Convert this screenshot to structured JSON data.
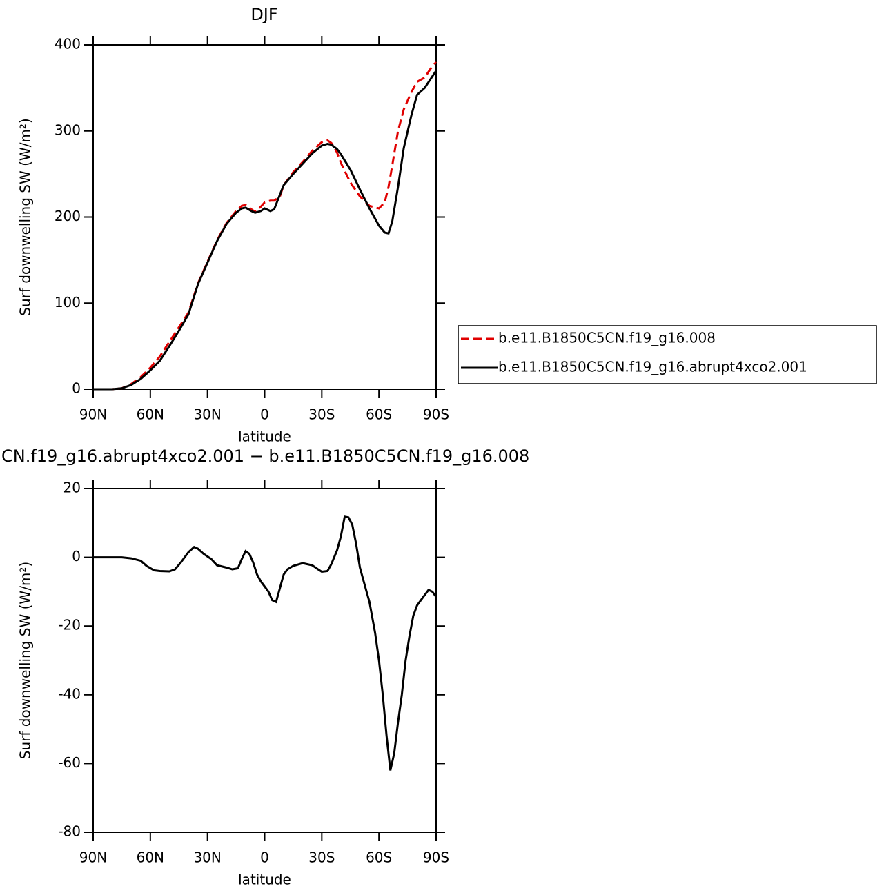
{
  "chart_data": [
    {
      "type": "line",
      "title": "DJF",
      "xlabel": "latitude",
      "ylabel": "Surf downwelling SW (W/m²)",
      "xlim": [
        90,
        -90
      ],
      "xticks": [
        {
          "value": 90,
          "label": "90N"
        },
        {
          "value": 60,
          "label": "60N"
        },
        {
          "value": 30,
          "label": "30N"
        },
        0,
        {
          "value": -30,
          "label": "30S"
        },
        {
          "value": -60,
          "label": "60S"
        },
        {
          "value": -90,
          "label": "90S"
        }
      ],
      "ylim": [
        0,
        400
      ],
      "yticks": [
        0,
        100,
        200,
        300,
        400
      ],
      "x": [
        90,
        80,
        75,
        70,
        65,
        60,
        55,
        50,
        45,
        40,
        35,
        30,
        25,
        20,
        15,
        12,
        10,
        7,
        5,
        2,
        0,
        -3,
        -5,
        -8,
        -10,
        -15,
        -20,
        -25,
        -30,
        -33,
        -35,
        -38,
        -40,
        -45,
        -50,
        -55,
        -60,
        -63,
        -65,
        -67,
        -70,
        -73,
        -77,
        -80,
        -84,
        -87,
        -90
      ],
      "series": [
        {
          "name": "b.e11.B1850C5CN.f19_g16.008",
          "color": "#e00000",
          "dash": "dashed",
          "values": [
            0,
            0,
            1,
            6,
            14,
            25,
            38,
            55,
            72,
            89,
            123,
            148,
            173,
            193,
            207,
            213,
            214,
            209,
            206,
            212,
            217,
            219,
            219,
            224,
            237,
            252,
            264,
            277,
            287,
            289,
            286,
            275,
            263,
            240,
            224,
            213,
            210,
            217,
            235,
            260,
            300,
            325,
            345,
            357,
            362,
            372,
            380
          ]
        },
        {
          "name": "b.e11.B1850C5CN.f19_g16.abrupt4xco2.001",
          "color": "#000000",
          "dash": "solid",
          "values": [
            0,
            0,
            1,
            5,
            12,
            22,
            33,
            50,
            68,
            87,
            122,
            147,
            172,
            192,
            205,
            210,
            211,
            207,
            205,
            207,
            210,
            207,
            209,
            226,
            237,
            250,
            262,
            274,
            283,
            285,
            284,
            279,
            273,
            255,
            232,
            210,
            190,
            182,
            181,
            195,
            235,
            280,
            318,
            342,
            350,
            360,
            370
          ]
        }
      ]
    },
    {
      "type": "line",
      "title": "CN.f19_g16.abrupt4xco2.001 − b.e11.B1850C5CN.f19_g16.008",
      "xlabel": "latitude",
      "ylabel": "Surf downwelling SW (W/m²)",
      "xlim": [
        90,
        -90
      ],
      "xticks": [
        {
          "value": 90,
          "label": "90N"
        },
        {
          "value": 60,
          "label": "60N"
        },
        {
          "value": 30,
          "label": "30N"
        },
        0,
        {
          "value": -30,
          "label": "30S"
        },
        {
          "value": -60,
          "label": "60S"
        },
        {
          "value": -90,
          "label": "90S"
        }
      ],
      "ylim": [
        -80,
        20
      ],
      "yticks": [
        -80,
        -60,
        -40,
        -20,
        0,
        20
      ],
      "x": [
        90,
        80,
        75,
        70,
        65,
        62,
        58,
        55,
        50,
        47,
        44,
        40,
        37,
        35,
        32,
        28,
        25,
        20,
        17,
        14,
        12,
        10,
        8,
        6,
        4,
        2,
        0,
        -2,
        -4,
        -6,
        -8,
        -10,
        -12,
        -15,
        -20,
        -25,
        -28,
        -30,
        -33,
        -35,
        -38,
        -40,
        -42,
        -44,
        -46,
        -48,
        -50,
        -53,
        -55,
        -58,
        -60,
        -62,
        -64,
        -66,
        -68,
        -70,
        -72,
        -74,
        -76,
        -78,
        -80,
        -82,
        -84,
        -86,
        -88,
        -90
      ],
      "series": [
        {
          "color": "#000000",
          "dash": "solid",
          "values": [
            0,
            0,
            0,
            -0.3,
            -1,
            -2.5,
            -3.8,
            -4,
            -4.1,
            -3.5,
            -1.5,
            1.5,
            3,
            2.5,
            1,
            -0.5,
            -2.3,
            -3,
            -3.5,
            -3.2,
            -0.5,
            1.8,
            1,
            -1.5,
            -5,
            -7,
            -8.5,
            -10,
            -12.5,
            -13,
            -9,
            -5,
            -3.5,
            -2.5,
            -1.7,
            -2.3,
            -3.5,
            -4.2,
            -4,
            -2,
            2,
            6,
            11.8,
            11.6,
            9.5,
            4,
            -3,
            -9,
            -13,
            -22,
            -30,
            -40,
            -52,
            -62,
            -57,
            -48,
            -40,
            -30,
            -23,
            -17,
            -14,
            -12.5,
            -11,
            -9.5,
            -10,
            -11.5
          ]
        }
      ]
    }
  ]
}
